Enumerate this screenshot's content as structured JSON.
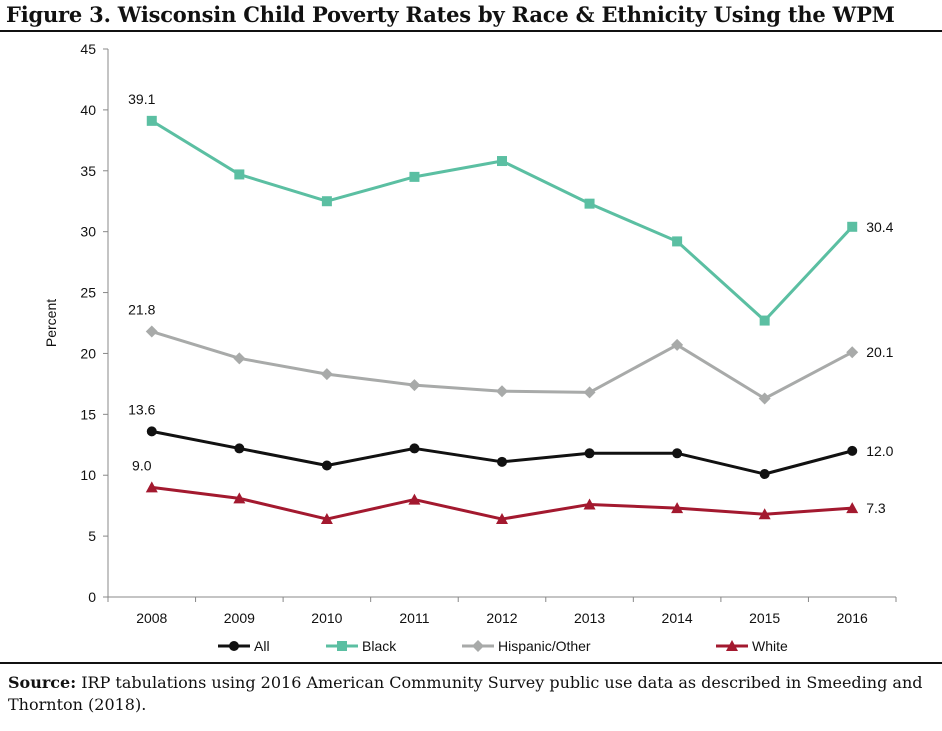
{
  "figure": {
    "title": "Figure 3. Wisconsin Child Poverty Rates by Race & Ethnicity Using the WPM",
    "source_label": "Source:",
    "source_text": " IRP tabulations using 2016 American Community Survey public use data as described in Smeeding and Thornton (2018)."
  },
  "chart_data": {
    "type": "line",
    "title": "",
    "xlabel": "",
    "ylabel": "Percent",
    "ylim": [
      0,
      45
    ],
    "yticks": [
      0,
      5,
      10,
      15,
      20,
      25,
      30,
      35,
      40,
      45
    ],
    "x": [
      "2008",
      "2009",
      "2010",
      "2011",
      "2012",
      "2013",
      "2014",
      "2015",
      "2016"
    ],
    "grid": false,
    "legend_position": "bottom",
    "series": [
      {
        "name": "All",
        "color": "#111111",
        "marker": "circle",
        "values": [
          13.6,
          12.2,
          10.8,
          12.2,
          11.1,
          11.8,
          11.8,
          10.1,
          12.0
        ],
        "labels": {
          "first": "13.6",
          "last": "12.0"
        }
      },
      {
        "name": "Black",
        "color": "#5bbfa2",
        "marker": "square",
        "values": [
          39.1,
          34.7,
          32.5,
          34.5,
          35.8,
          32.3,
          29.2,
          22.7,
          30.4
        ],
        "labels": {
          "first": "39.1",
          "last": "30.4"
        }
      },
      {
        "name": "Hispanic/Other",
        "color": "#a8aaa9",
        "marker": "diamond",
        "values": [
          21.8,
          19.6,
          18.3,
          17.4,
          16.9,
          16.8,
          20.7,
          16.3,
          20.1
        ],
        "labels": {
          "first": "21.8",
          "last": "20.1"
        }
      },
      {
        "name": "White",
        "color": "#a3192f",
        "marker": "triangle",
        "values": [
          9.0,
          8.1,
          6.4,
          8.0,
          6.4,
          7.6,
          7.3,
          6.8,
          7.3
        ],
        "labels": {
          "first": "9.0",
          "last": "7.3"
        }
      }
    ]
  }
}
